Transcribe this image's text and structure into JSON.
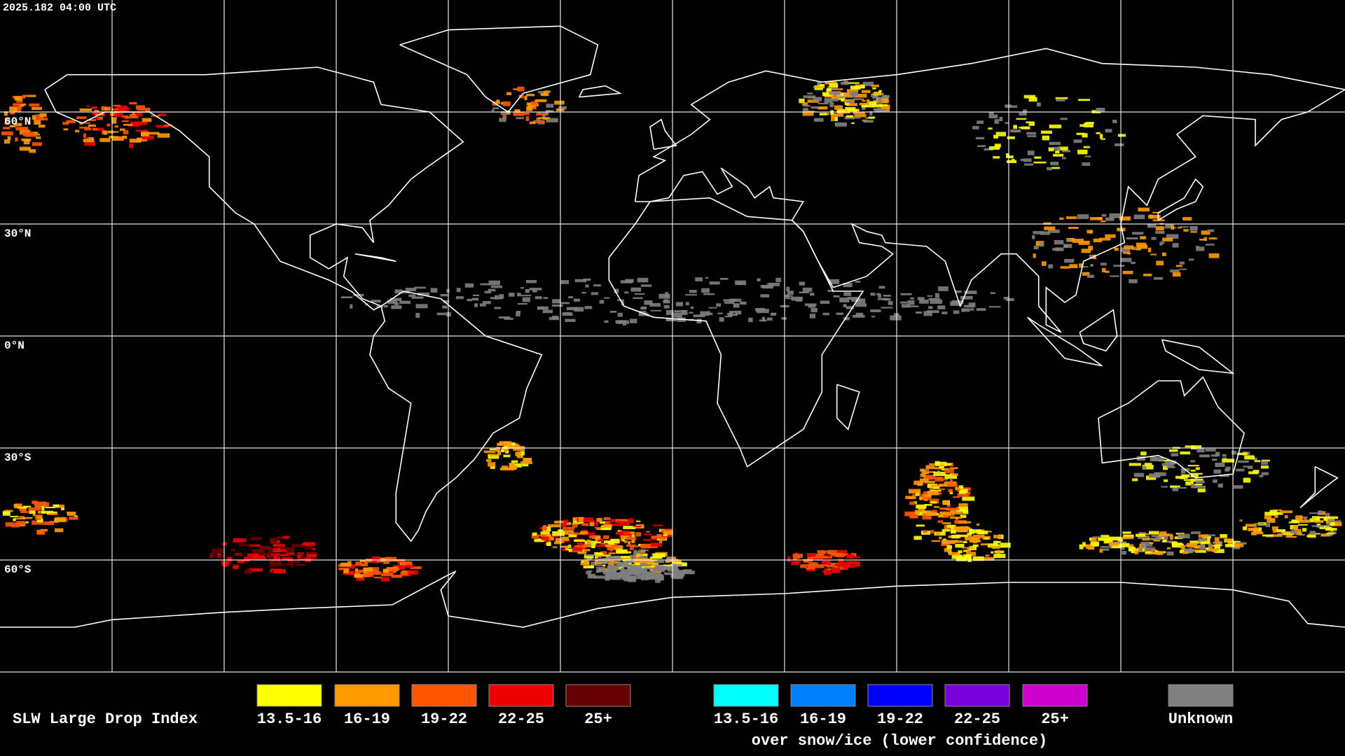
{
  "header": {
    "timestamp": "2025.182 04:00 UTC"
  },
  "map": {
    "latitude_labels": [
      "60°N",
      "30°N",
      "0°N",
      "30°S",
      "60°S"
    ]
  },
  "legend": {
    "title": "SLW Large Drop Index",
    "groups": [
      {
        "items": [
          {
            "label": "13.5-16",
            "color": "#ffff00"
          },
          {
            "label": "16-19",
            "color": "#ff9900"
          },
          {
            "label": "19-22",
            "color": "#ff5500"
          },
          {
            "label": "22-25",
            "color": "#ee0000"
          },
          {
            "label": "25+",
            "color": "#660000"
          }
        ]
      },
      {
        "items": [
          {
            "label": "13.5-16",
            "color": "#00ffff"
          },
          {
            "label": "16-19",
            "color": "#0080ff"
          },
          {
            "label": "19-22",
            "color": "#0000ff"
          },
          {
            "label": "22-25",
            "color": "#7700dd"
          },
          {
            "label": "25+",
            "color": "#cc00cc"
          }
        ],
        "caption": "over snow/ice (lower confidence)"
      },
      {
        "items": [
          {
            "label": "Unknown",
            "color": "#808080"
          }
        ]
      }
    ]
  }
}
